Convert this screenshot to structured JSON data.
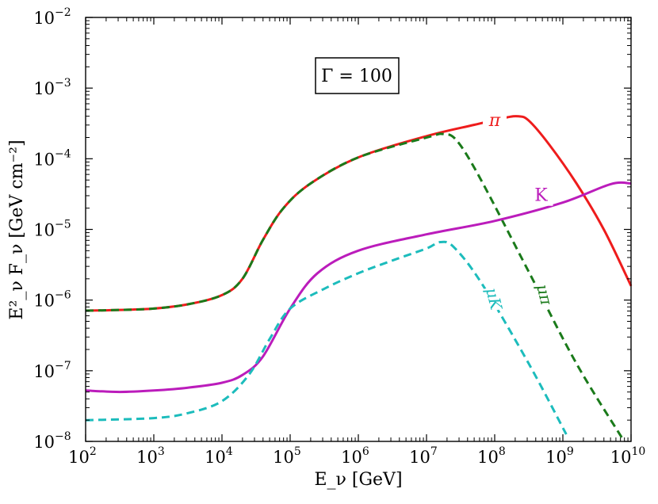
{
  "chart_data": {
    "type": "line",
    "title": "",
    "xlabel": "E_ν [GeV]",
    "ylabel": "E²_ν F_ν [GeV cm⁻²]",
    "xscale": "log",
    "yscale": "log",
    "xlim": [
      100,
      10000000000
    ],
    "ylim": [
      1e-08,
      0.01
    ],
    "grid": false,
    "x_ticks": [
      {
        "base": "10",
        "exp": "2",
        "value": 100
      },
      {
        "base": "10",
        "exp": "3",
        "value": 1000
      },
      {
        "base": "10",
        "exp": "4",
        "value": 10000
      },
      {
        "base": "10",
        "exp": "5",
        "value": 100000
      },
      {
        "base": "10",
        "exp": "6",
        "value": 1000000
      },
      {
        "base": "10",
        "exp": "7",
        "value": 10000000
      },
      {
        "base": "10",
        "exp": "8",
        "value": 100000000
      },
      {
        "base": "10",
        "exp": "9",
        "value": 1000000000
      },
      {
        "base": "10",
        "exp": "10",
        "value": 10000000000
      }
    ],
    "y_ticks": [
      {
        "base": "10",
        "exp": "−8",
        "value": 1e-08
      },
      {
        "base": "10",
        "exp": "−7",
        "value": 1e-07
      },
      {
        "base": "10",
        "exp": "−6",
        "value": 1e-06
      },
      {
        "base": "10",
        "exp": "−5",
        "value": 1e-05
      },
      {
        "base": "10",
        "exp": "−4",
        "value": 0.0001
      },
      {
        "base": "10",
        "exp": "−3",
        "value": 0.001
      },
      {
        "base": "10",
        "exp": "−2",
        "value": 0.01
      }
    ],
    "annotation_box": "Γ = 100",
    "series": [
      {
        "name": "π",
        "label": "π",
        "color": "#ee1c1c",
        "style": "solid",
        "log_points": [
          [
            2,
            -6.15
          ],
          [
            2.5,
            -6.14
          ],
          [
            3,
            -6.12
          ],
          [
            3.5,
            -6.06
          ],
          [
            4,
            -5.93
          ],
          [
            4.3,
            -5.7
          ],
          [
            4.6,
            -5.15
          ],
          [
            4.9,
            -4.7
          ],
          [
            5.3,
            -4.35
          ],
          [
            6,
            -3.98
          ],
          [
            7,
            -3.68
          ],
          [
            7.7,
            -3.52
          ],
          [
            8.15,
            -3.42
          ],
          [
            8.35,
            -3.4
          ],
          [
            8.5,
            -3.46
          ],
          [
            8.8,
            -3.8
          ],
          [
            9.2,
            -4.35
          ],
          [
            9.6,
            -5.0
          ],
          [
            10,
            -5.8
          ]
        ]
      },
      {
        "name": "μ_π",
        "label": "μπ",
        "color": "#1a7a1a",
        "style": "dashed",
        "log_points": [
          [
            2,
            -6.15
          ],
          [
            2.5,
            -6.14
          ],
          [
            3,
            -6.12
          ],
          [
            3.5,
            -6.06
          ],
          [
            4,
            -5.93
          ],
          [
            4.3,
            -5.7
          ],
          [
            4.6,
            -5.15
          ],
          [
            4.9,
            -4.7
          ],
          [
            5.3,
            -4.35
          ],
          [
            6,
            -3.98
          ],
          [
            7,
            -3.7
          ],
          [
            7.25,
            -3.65
          ],
          [
            7.45,
            -3.75
          ],
          [
            7.8,
            -4.3
          ],
          [
            8.5,
            -5.6
          ],
          [
            9.2,
            -6.9
          ],
          [
            9.9,
            -8.0
          ]
        ]
      },
      {
        "name": "K",
        "label": "K",
        "color": "#bb1cbb",
        "style": "solid",
        "log_points": [
          [
            2,
            -7.28
          ],
          [
            2.5,
            -7.3
          ],
          [
            3,
            -7.28
          ],
          [
            3.5,
            -7.24
          ],
          [
            4,
            -7.17
          ],
          [
            4.3,
            -7.06
          ],
          [
            4.6,
            -6.8
          ],
          [
            5,
            -6.12
          ],
          [
            5.4,
            -5.62
          ],
          [
            6,
            -5.3
          ],
          [
            7,
            -5.07
          ],
          [
            8,
            -4.88
          ],
          [
            9,
            -4.62
          ],
          [
            9.7,
            -4.36
          ],
          [
            10,
            -4.35
          ]
        ]
      },
      {
        "name": "μ_K",
        "label": "μK",
        "color": "#1cbcbc",
        "style": "dashed",
        "log_points": [
          [
            2,
            -7.7
          ],
          [
            3,
            -7.67
          ],
          [
            3.5,
            -7.6
          ],
          [
            4,
            -7.43
          ],
          [
            4.4,
            -7.05
          ],
          [
            4.7,
            -6.55
          ],
          [
            5,
            -6.12
          ],
          [
            5.5,
            -5.84
          ],
          [
            6,
            -5.62
          ],
          [
            6.5,
            -5.44
          ],
          [
            7,
            -5.27
          ],
          [
            7.2,
            -5.18
          ],
          [
            7.4,
            -5.25
          ],
          [
            7.8,
            -5.75
          ],
          [
            8.5,
            -6.9
          ],
          [
            9.05,
            -7.9
          ]
        ]
      }
    ]
  }
}
